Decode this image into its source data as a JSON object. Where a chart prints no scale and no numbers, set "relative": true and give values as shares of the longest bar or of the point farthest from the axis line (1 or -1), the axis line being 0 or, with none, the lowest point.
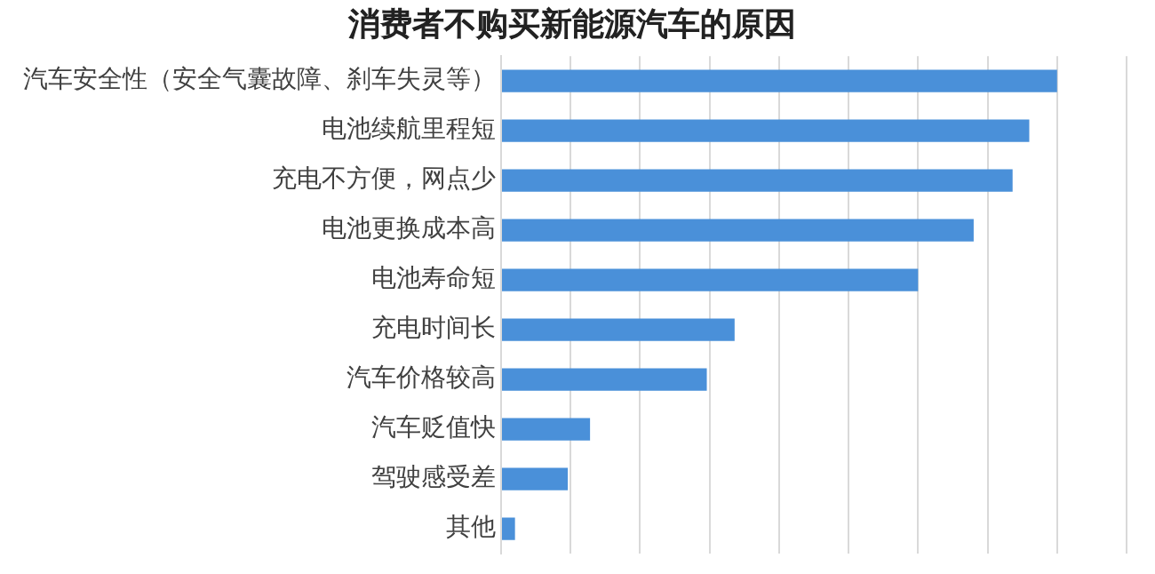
{
  "chart_data": {
    "type": "bar",
    "orientation": "horizontal",
    "relative": true,
    "title": "消费者不购买新能源汽车的原因",
    "categories": [
      "汽车安全性（安全气囊故障、刹车失灵等）",
      "电池续航里程短",
      "充电不方便，网点少",
      "电池更换成本高",
      "电池寿命短",
      "充电时间长",
      "汽车价格较高",
      "汽车贬值快",
      "驾驶感受差",
      "其他"
    ],
    "values": [
      1,
      0.95,
      0.92,
      0.85,
      0.75,
      0.42,
      0.37,
      0.16,
      0.12,
      0.025
    ],
    "color": "#4a90d9",
    "grid": "x",
    "legend": false
  }
}
